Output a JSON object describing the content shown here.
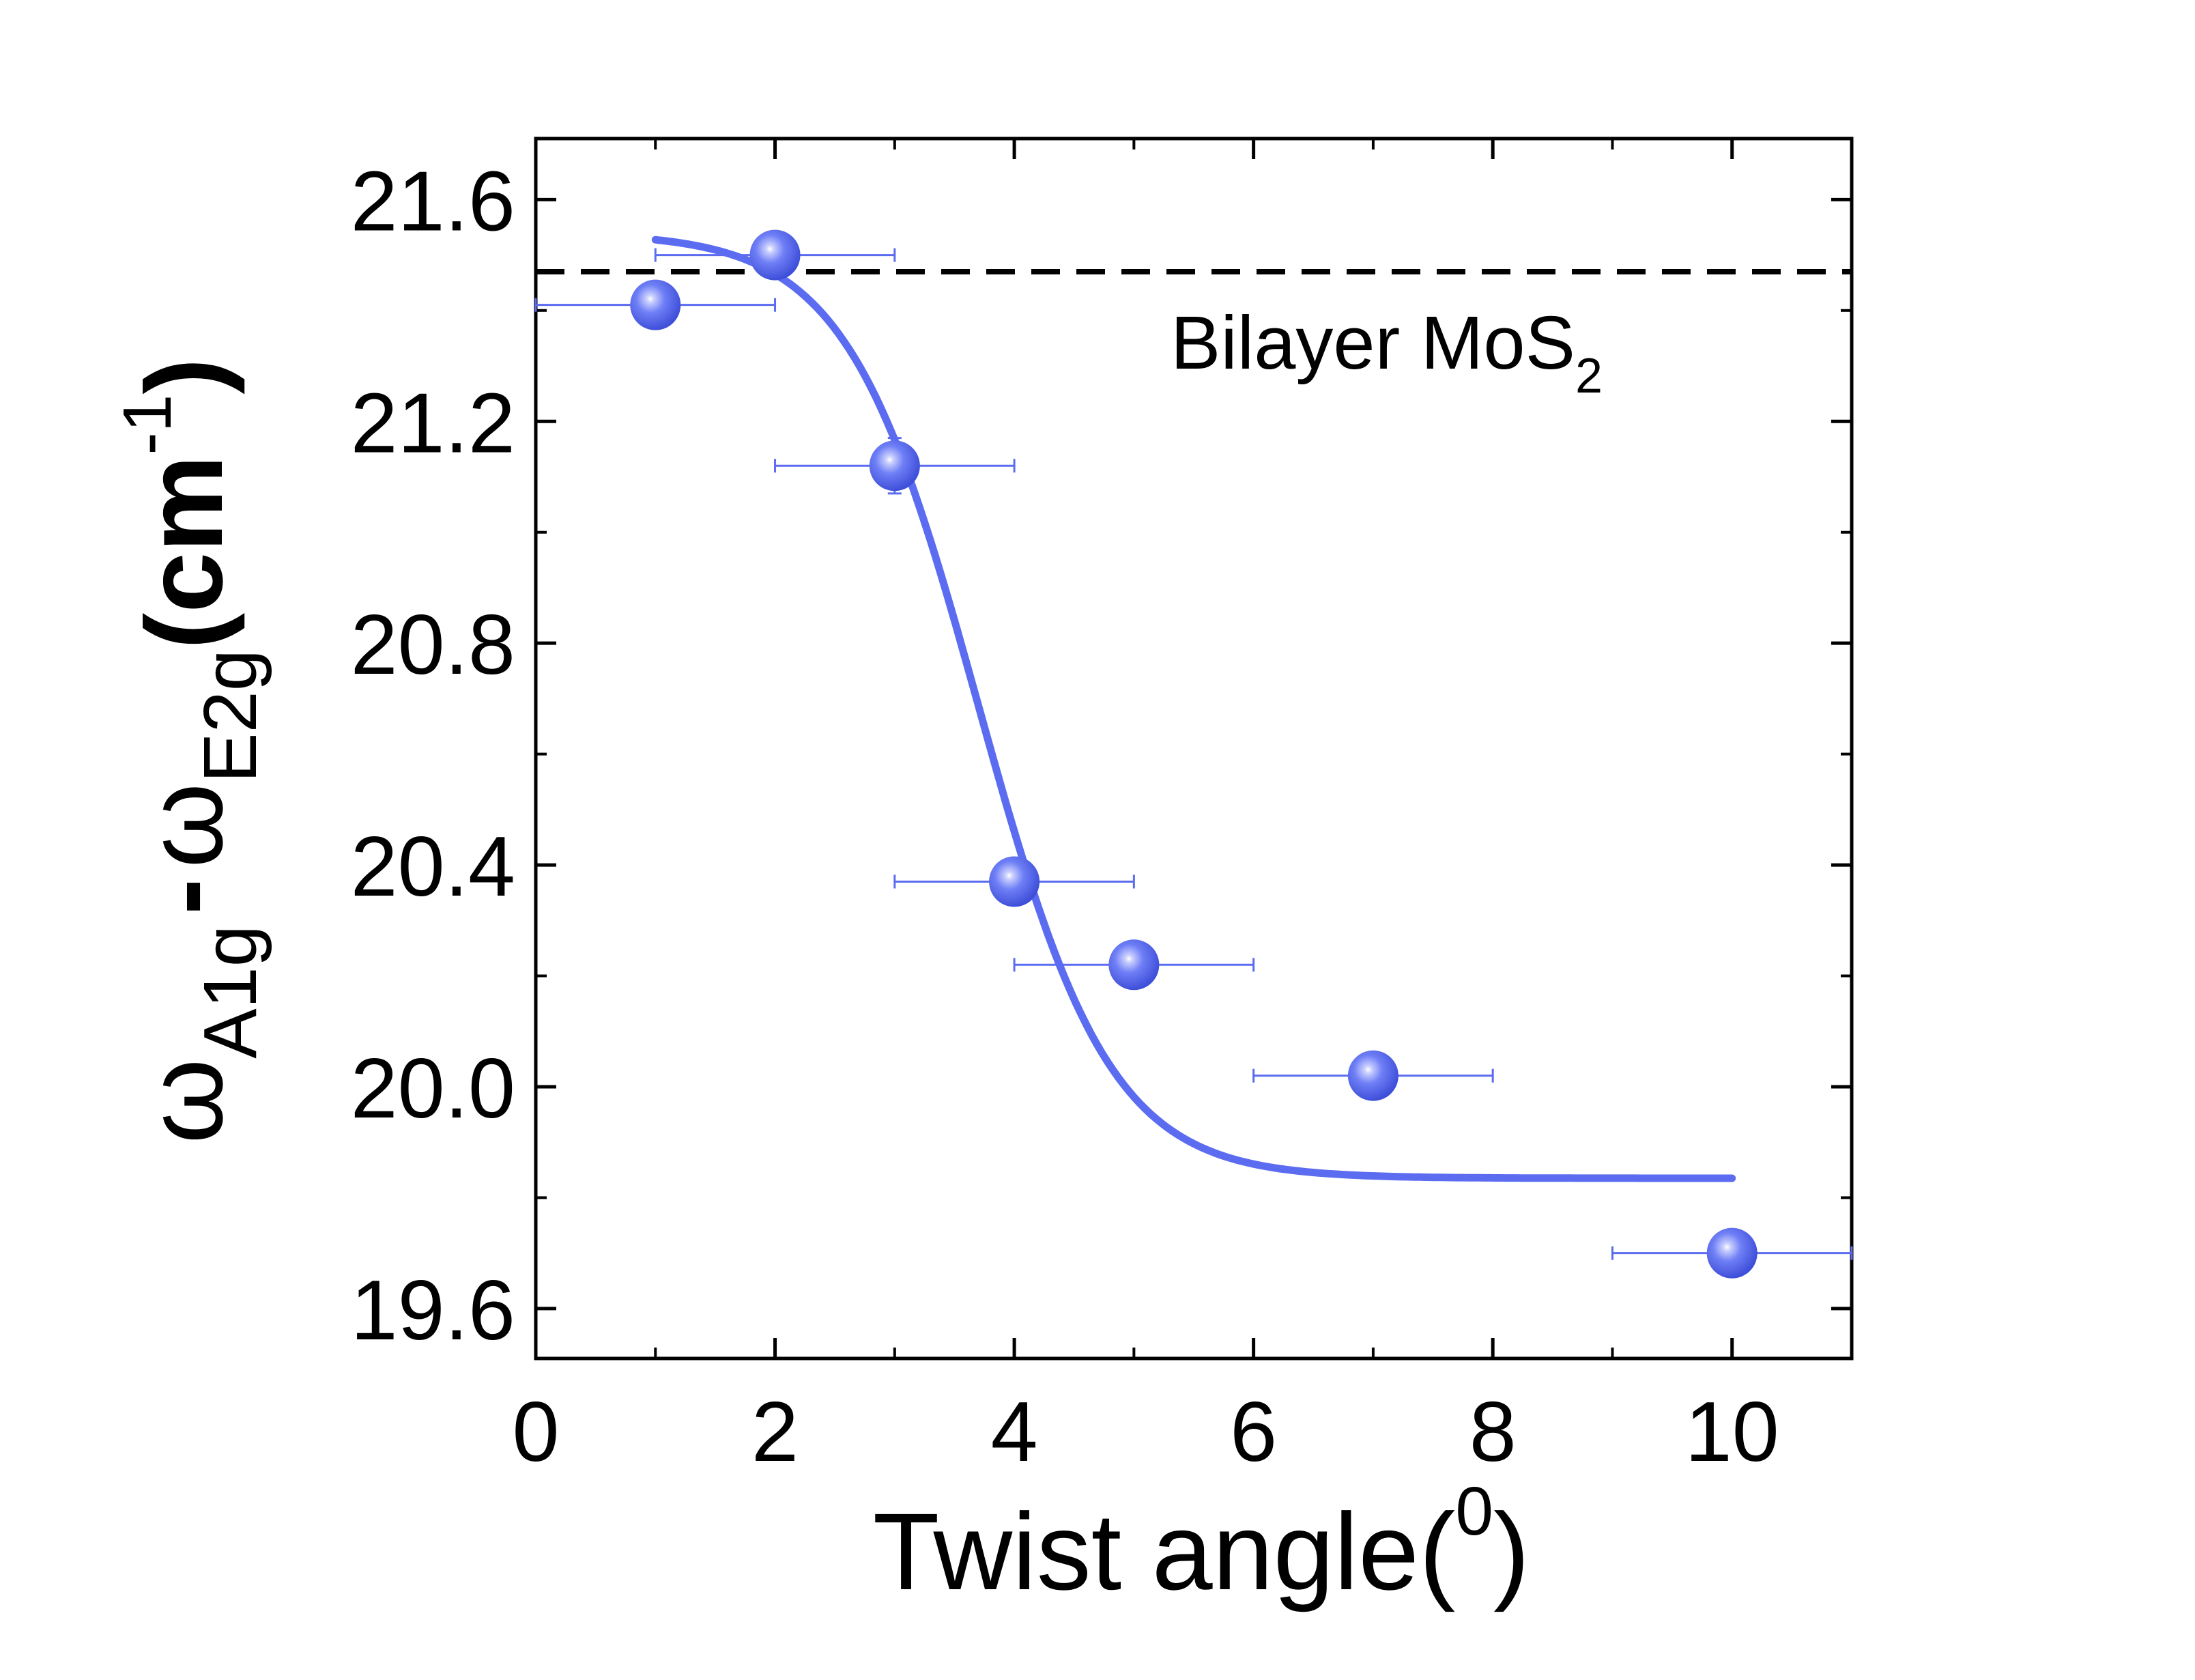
{
  "chart_data": {
    "type": "scatter",
    "title": "",
    "xlabel": {
      "main": "Twist angle(",
      "sup": "0",
      "tail": ")"
    },
    "ylabel": {
      "omega1": "ω",
      "sub1": "A1g",
      "minus": "-",
      "omega2": "ω",
      "sub2": "E2g",
      "unit_open": "(cm",
      "unit_sup": "-1",
      "unit_close": ")"
    },
    "xlim": [
      0,
      11
    ],
    "ylim": [
      19.51,
      21.71
    ],
    "x_ticks": [
      0,
      2,
      4,
      6,
      8,
      10
    ],
    "x_tick_labels": [
      "0",
      "2",
      "4",
      "6",
      "8",
      "10"
    ],
    "y_ticks": [
      19.6,
      20.0,
      20.4,
      20.8,
      21.2,
      21.6
    ],
    "y_tick_labels": [
      "19.6",
      "20.0",
      "20.4",
      "20.8",
      "21.2",
      "21.6"
    ],
    "grid": false,
    "series": [
      {
        "type": "scatter",
        "color": "#5b6cf0",
        "points": [
          {
            "x": 1,
            "y": 21.41,
            "xerr": 1,
            "yerr": 0.01
          },
          {
            "x": 2,
            "y": 21.5,
            "xerr": 1,
            "yerr": 0.01
          },
          {
            "x": 3,
            "y": 21.12,
            "xerr": 1,
            "yerr": 0.05
          },
          {
            "x": 4,
            "y": 20.37,
            "xerr": 1,
            "yerr": 0.01
          },
          {
            "x": 5,
            "y": 20.22,
            "xerr": 1,
            "yerr": 0.01
          },
          {
            "x": 7,
            "y": 20.02,
            "xerr": 1,
            "yerr": 0.01
          },
          {
            "x": 10,
            "y": 19.7,
            "xerr": 1,
            "yerr": 0.01
          }
        ]
      },
      {
        "type": "line",
        "color": "#5b6cf0",
        "fit": {
          "form": "sigmoid",
          "upper": 21.54,
          "lower": 19.835,
          "center": 3.7,
          "width": 0.55,
          "x_range": [
            1,
            10
          ]
        }
      }
    ],
    "reference_line": {
      "y": 21.47,
      "style": "dashed",
      "color": "#000000"
    },
    "annotation": {
      "text": "Bilayer MoS",
      "sub": "2"
    }
  }
}
